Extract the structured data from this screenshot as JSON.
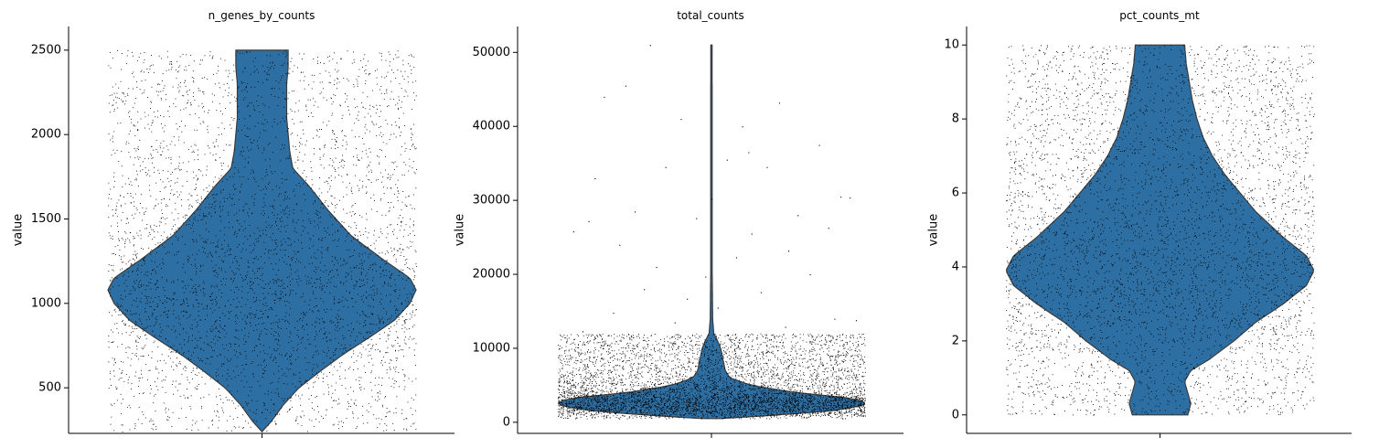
{
  "chart_data": [
    {
      "type": "violin",
      "title": "n_genes_by_counts",
      "ylabel": "value",
      "ylim": [
        230,
        2640
      ],
      "yticks": [
        "500",
        "1000",
        "1500",
        "2000",
        "2500"
      ],
      "data_range": [
        240,
        2500
      ],
      "color": "#2e6fa3",
      "profile": [
        [
          240,
          0.0
        ],
        [
          300,
          0.06
        ],
        [
          400,
          0.14
        ],
        [
          500,
          0.24
        ],
        [
          600,
          0.38
        ],
        [
          700,
          0.53
        ],
        [
          800,
          0.7
        ],
        [
          900,
          0.86
        ],
        [
          1000,
          0.96
        ],
        [
          1080,
          1.0
        ],
        [
          1150,
          0.96
        ],
        [
          1250,
          0.8
        ],
        [
          1400,
          0.58
        ],
        [
          1550,
          0.43
        ],
        [
          1700,
          0.3
        ],
        [
          1800,
          0.2
        ],
        [
          1900,
          0.18
        ],
        [
          2000,
          0.17
        ],
        [
          2100,
          0.16
        ],
        [
          2200,
          0.16
        ],
        [
          2300,
          0.16
        ],
        [
          2400,
          0.17
        ],
        [
          2500,
          0.17
        ]
      ],
      "scatter_range": [
        240,
        2500
      ],
      "n_points": 4200,
      "uniform_fraction": 0.4
    },
    {
      "type": "violin",
      "title": "total_counts",
      "ylabel": "value",
      "ylim": [
        -1500,
        53500
      ],
      "yticks": [
        "0",
        "10000",
        "20000",
        "30000",
        "40000",
        "50000"
      ],
      "data_range": [
        500,
        51000
      ],
      "color": "#2e6fa3",
      "profile": [
        [
          500,
          0.06
        ],
        [
          1000,
          0.45
        ],
        [
          1600,
          0.8
        ],
        [
          2200,
          0.98
        ],
        [
          2800,
          1.0
        ],
        [
          3300,
          0.9
        ],
        [
          4000,
          0.55
        ],
        [
          5000,
          0.26
        ],
        [
          6000,
          0.12
        ],
        [
          7000,
          0.09
        ],
        [
          8000,
          0.08
        ],
        [
          9000,
          0.07
        ],
        [
          10000,
          0.06
        ],
        [
          11000,
          0.04
        ],
        [
          12000,
          0.015
        ],
        [
          14000,
          0.008
        ],
        [
          20000,
          0.005
        ],
        [
          30000,
          0.005
        ],
        [
          40000,
          0.005
        ],
        [
          51000,
          0.004
        ]
      ],
      "scatter_range": [
        500,
        12000
      ],
      "n_points": 5500,
      "uniform_fraction": 0.25,
      "outliers": [
        [
          0.3,
          51000
        ],
        [
          0.22,
          45500
        ],
        [
          0.72,
          43200
        ],
        [
          0.15,
          44000
        ],
        [
          0.6,
          40000
        ],
        [
          0.4,
          41000
        ],
        [
          0.85,
          37500
        ],
        [
          0.12,
          33000
        ],
        [
          0.55,
          35500
        ],
        [
          0.68,
          34500
        ],
        [
          0.35,
          34500
        ],
        [
          0.92,
          30500
        ],
        [
          0.5,
          30200
        ],
        [
          0.25,
          28500
        ],
        [
          0.78,
          28000
        ],
        [
          0.1,
          27200
        ],
        [
          0.45,
          27600
        ],
        [
          0.88,
          26300
        ],
        [
          0.63,
          25500
        ],
        [
          0.2,
          24000
        ],
        [
          0.58,
          22300
        ],
        [
          0.75,
          23200
        ],
        [
          0.32,
          21000
        ],
        [
          0.82,
          20000
        ],
        [
          0.05,
          25800
        ],
        [
          0.48,
          19700
        ],
        [
          0.95,
          30400
        ],
        [
          0.42,
          16700
        ],
        [
          0.66,
          17600
        ],
        [
          0.28,
          18000
        ],
        [
          0.9,
          14000
        ],
        [
          0.18,
          14800
        ],
        [
          0.52,
          15500
        ],
        [
          0.74,
          12900
        ],
        [
          0.38,
          13500
        ],
        [
          0.08,
          12300
        ],
        [
          0.97,
          13800
        ],
        [
          0.62,
          36500
        ]
      ]
    },
    {
      "type": "violin",
      "title": "pct_counts_mt",
      "ylabel": "value",
      "ylim": [
        -0.5,
        10.5
      ],
      "yticks": [
        "0",
        "2",
        "4",
        "6",
        "8",
        "10"
      ],
      "data_range": [
        0,
        10
      ],
      "color": "#2e6fa3",
      "profile": [
        [
          0.0,
          0.18
        ],
        [
          0.3,
          0.2
        ],
        [
          0.6,
          0.18
        ],
        [
          0.9,
          0.16
        ],
        [
          1.2,
          0.2
        ],
        [
          1.5,
          0.32
        ],
        [
          2.0,
          0.48
        ],
        [
          2.5,
          0.62
        ],
        [
          3.0,
          0.8
        ],
        [
          3.5,
          0.95
        ],
        [
          3.9,
          1.0
        ],
        [
          4.3,
          0.95
        ],
        [
          4.8,
          0.8
        ],
        [
          5.5,
          0.62
        ],
        [
          6.0,
          0.52
        ],
        [
          6.5,
          0.42
        ],
        [
          7.0,
          0.34
        ],
        [
          7.5,
          0.28
        ],
        [
          8.0,
          0.24
        ],
        [
          8.5,
          0.21
        ],
        [
          9.0,
          0.19
        ],
        [
          9.5,
          0.17
        ],
        [
          10.0,
          0.16
        ]
      ],
      "scatter_range": [
        0,
        10
      ],
      "n_points": 4800,
      "uniform_fraction": 0.55
    }
  ]
}
